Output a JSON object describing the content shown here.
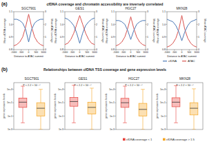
{
  "sections": [
    {
      "label": "(a)",
      "title": "cfDNA coverage and chromatin accessibility are inversely correlated"
    },
    {
      "label": "(b)",
      "title": "Relationships between cfDNA TSS coverage and gene expression levels"
    }
  ],
  "chart_data": [
    {
      "type": "line",
      "title": "SGC7901",
      "x_label": "Distance to ATAC summit",
      "y_label": "Mean cfDNA coverage",
      "y2_label": "Mean ATAC coverage",
      "x": [
        -1000,
        -800,
        -600,
        -400,
        -200,
        0,
        200,
        400,
        600,
        800,
        1000
      ],
      "xlim": [
        -1000,
        1000
      ],
      "xticks": [
        -1000,
        -500,
        0,
        500,
        1000
      ],
      "ylim": [
        0.8,
        1.1
      ],
      "yticks": [
        0.8,
        0.9,
        {
          "value": 1,
          "label": "1.0"
        },
        1.1
      ],
      "y2lim": [
        0,
        3
      ],
      "y2ticks": [
        0,
        1,
        2,
        3
      ],
      "legend": "bottom-right",
      "series": [
        {
          "name": "ATAC",
          "color": "#d9534f",
          "axis": "y2",
          "values": [
            0.3,
            0.4,
            0.6,
            1.0,
            1.8,
            2.8,
            1.8,
            1.0,
            0.6,
            0.4,
            0.3
          ]
        },
        {
          "name": "cfDNA",
          "color": "#4a78b5",
          "values": [
            1.04,
            1.04,
            1.03,
            1.01,
            0.96,
            0.86,
            0.96,
            1.01,
            1.03,
            1.04,
            1.04
          ]
        }
      ]
    },
    {
      "type": "line",
      "title": "GES1",
      "x_label": "Distance to ATAC summit",
      "y_label": "Mean cfDNA coverage",
      "y2_label": "Mean ATAC coverage",
      "x": [
        -1000,
        -800,
        -600,
        -400,
        -200,
        0,
        200,
        400,
        600,
        800,
        1000
      ],
      "xlim": [
        -1000,
        1000
      ],
      "xticks": [
        -1000,
        -500,
        0,
        500,
        1000
      ],
      "ylim": [
        0.8,
        1.1
      ],
      "yticks": [
        0.8,
        0.9,
        {
          "value": 1,
          "label": "1.0"
        },
        1.1
      ],
      "y2lim": [
        0,
        3
      ],
      "y2ticks": [
        0,
        1,
        2,
        3
      ],
      "series": [
        {
          "name": "ATAC",
          "color": "#d9534f",
          "axis": "y2",
          "values": [
            0.4,
            0.5,
            0.8,
            1.3,
            2.0,
            2.7,
            2.0,
            1.3,
            0.8,
            0.5,
            0.4
          ]
        },
        {
          "name": "cfDNA",
          "color": "#4a78b5",
          "values": [
            1.05,
            1.04,
            1.02,
            0.99,
            0.93,
            0.85,
            0.93,
            0.99,
            1.02,
            1.04,
            1.05
          ]
        }
      ]
    },
    {
      "type": "line",
      "title": "HGC27",
      "x_label": "Distance to ATAC summit",
      "y_label": "Mean cfDNA coverage",
      "y2_label": "Mean ATAC coverage",
      "x": [
        -1000,
        -800,
        -600,
        -400,
        -200,
        0,
        200,
        400,
        600,
        800,
        1000
      ],
      "xlim": [
        -1000,
        1000
      ],
      "xticks": [
        -1000,
        -500,
        0,
        500,
        1000
      ],
      "ylim": [
        0.8,
        1.1
      ],
      "yticks": [
        0.8,
        0.9,
        {
          "value": 1,
          "label": "1.0"
        },
        1.1
      ],
      "y2lim": [
        0,
        3
      ],
      "y2ticks": [
        0,
        1,
        2,
        3
      ],
      "series": [
        {
          "name": "ATAC",
          "color": "#d9534f",
          "axis": "y2",
          "values": [
            0.3,
            0.4,
            0.6,
            1.0,
            1.7,
            2.6,
            1.7,
            1.0,
            0.6,
            0.4,
            0.3
          ]
        },
        {
          "name": "cfDNA",
          "color": "#4a78b5",
          "values": [
            1.03,
            1.03,
            1.02,
            1.0,
            0.95,
            0.88,
            0.95,
            1.0,
            1.02,
            1.03,
            1.03
          ]
        }
      ]
    },
    {
      "type": "line",
      "title": "MKN28",
      "x_label": "Distance to ATAC summit",
      "y_label": "Mean cfDNA coverage",
      "y2_label": "Mean ATAC coverage",
      "x": [
        -1000,
        -800,
        -600,
        -400,
        -200,
        0,
        200,
        400,
        600,
        800,
        1000
      ],
      "xlim": [
        -1000,
        1000
      ],
      "xticks": [
        -1000,
        -500,
        0,
        500,
        1000
      ],
      "ylim": [
        0.8,
        1.1
      ],
      "yticks": [
        0.8,
        0.9,
        {
          "value": 1,
          "label": "1.0"
        },
        1.1
      ],
      "y2lim": [
        0,
        3
      ],
      "y2ticks": [
        0,
        1,
        2,
        3
      ],
      "series": [
        {
          "name": "ATAC",
          "color": "#d9534f",
          "axis": "y2",
          "values": [
            0.2,
            0.3,
            0.5,
            0.9,
            1.6,
            2.7,
            1.6,
            0.9,
            0.5,
            0.3,
            0.2
          ]
        },
        {
          "name": "cfDNA",
          "color": "#4a78b5",
          "values": [
            1.04,
            1.03,
            1.02,
            0.99,
            0.94,
            0.87,
            0.94,
            0.99,
            1.02,
            1.03,
            1.04
          ]
        }
      ]
    },
    {
      "type": "box",
      "title": "SGC7901",
      "y_label": "gene expression levels",
      "annotation": "P < 2.2 × 10⁻¹⁶",
      "log": "y",
      "tick_labels": "y",
      "ylim": [
        0.001,
        10000
      ],
      "yticks": [
        {
          "value": 0.001,
          "label": "1e-3"
        },
        {
          "value": 0.1,
          "label": "1e-1"
        },
        {
          "value": 10,
          "label": "1e+1"
        },
        {
          "value": 1000,
          "label": "1e+3"
        }
      ],
      "legend": "bottom-right",
      "series": [
        {
          "name": "cfDNA coverage < 1",
          "color": "#e8413c",
          "low": 0.01,
          "q1": 2,
          "median": 12,
          "q3": 50,
          "high": 3000
        },
        {
          "name": "cfDNA coverage > 1.5",
          "color": "#f5a623",
          "low": 0.001,
          "q1": 0.1,
          "median": 1.5,
          "q3": 10,
          "high": 1000
        }
      ]
    },
    {
      "type": "box",
      "title": "GES1",
      "y_label": "gene expression levels",
      "annotation": "P < 2.2 × 10⁻¹⁶",
      "log": "y",
      "tick_labels": "y",
      "ylim": [
        0.001,
        10000
      ],
      "yticks": [
        {
          "value": 0.001,
          "label": "1e-3"
        },
        {
          "value": 0.1,
          "label": "1e-1"
        },
        {
          "value": 10,
          "label": "1e+1"
        },
        {
          "value": 1000,
          "label": "1e+3"
        }
      ],
      "series": [
        {
          "name": "cfDNA coverage < 1",
          "color": "#e8413c",
          "low": 0.01,
          "q1": 3,
          "median": 15,
          "q3": 60,
          "high": 4000
        },
        {
          "name": "cfDNA coverage > 1.5",
          "color": "#f5a623",
          "low": 0.001,
          "q1": 0.2,
          "median": 2,
          "q3": 12,
          "high": 1500
        }
      ]
    },
    {
      "type": "box",
      "title": "HGC27",
      "y_label": "gene expression levels",
      "annotation": "P < 2.2 × 10⁻¹⁶",
      "log": "y",
      "tick_labels": "y",
      "ylim": [
        0.001,
        10000
      ],
      "yticks": [
        {
          "value": 0.001,
          "label": "1e-3"
        },
        {
          "value": 0.1,
          "label": "1e-1"
        },
        {
          "value": 10,
          "label": "1e+1"
        },
        {
          "value": 1000,
          "label": "1e+3"
        }
      ],
      "series": [
        {
          "name": "cfDNA coverage < 1",
          "color": "#e8413c",
          "low": 0.01,
          "q1": 2,
          "median": 10,
          "q3": 45,
          "high": 3000
        },
        {
          "name": "cfDNA coverage > 1.5",
          "color": "#f5a623",
          "low": 0.001,
          "q1": 0.1,
          "median": 1,
          "q3": 8,
          "high": 1000
        }
      ]
    },
    {
      "type": "box",
      "title": "MKN28",
      "y_label": "gene expression levels",
      "annotation": "P < 2.2 × 10⁻¹⁶",
      "log": "y",
      "tick_labels": "y",
      "ylim": [
        0.001,
        10000
      ],
      "yticks": [
        {
          "value": 0.001,
          "label": "1e-3"
        },
        {
          "value": 0.1,
          "label": "1e-1"
        },
        {
          "value": 10,
          "label": "1e+1"
        },
        {
          "value": 1000,
          "label": "1e+3"
        }
      ],
      "series": [
        {
          "name": "cfDNA coverage < 1",
          "color": "#e8413c",
          "low": 0.01,
          "q1": 2.5,
          "median": 12,
          "q3": 55,
          "high": 3500
        },
        {
          "name": "cfDNA coverage > 1.5",
          "color": "#f5a623",
          "low": 0.001,
          "q1": 0.15,
          "median": 1.5,
          "q3": 10,
          "high": 1200
        }
      ]
    }
  ]
}
